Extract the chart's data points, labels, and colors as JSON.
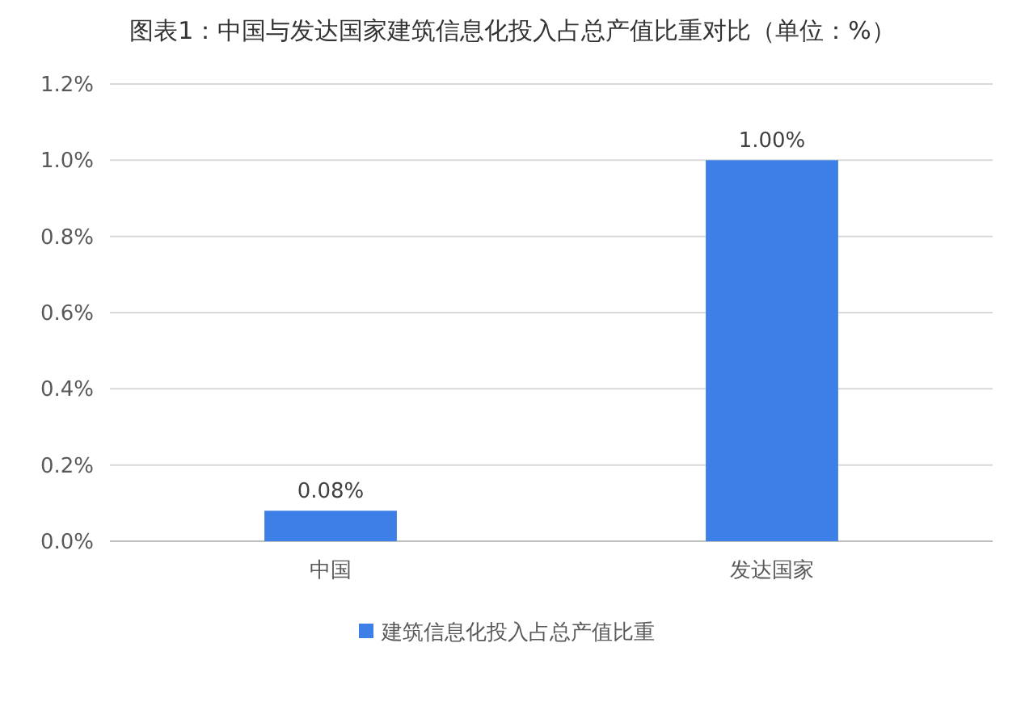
{
  "chart_data": {
    "type": "bar",
    "title": "图表1：中国与发达国家建筑信息化投入占总产值比重对比（单位：%）",
    "categories": [
      "中国",
      "发达国家"
    ],
    "series": [
      {
        "name": "建筑信息化投入占总产值比重",
        "color": "#3d7fe6",
        "values": [
          0.08,
          1.0
        ],
        "value_labels": [
          "0.08%",
          "1.00%"
        ]
      }
    ],
    "ylim": [
      0,
      1.2
    ],
    "yticks": [
      {
        "value": 0,
        "label": "0.0%"
      },
      {
        "value": 0.2,
        "label": "0.2%"
      },
      {
        "value": 0.4,
        "label": "0.4%"
      },
      {
        "value": 0.6,
        "label": "0.6%"
      },
      {
        "value": 0.8,
        "label": "0.8%"
      },
      {
        "value": 1.0,
        "label": "1.0%"
      },
      {
        "value": 1.2,
        "label": "1.2%"
      }
    ],
    "grid": "y",
    "legend": "bottom"
  }
}
